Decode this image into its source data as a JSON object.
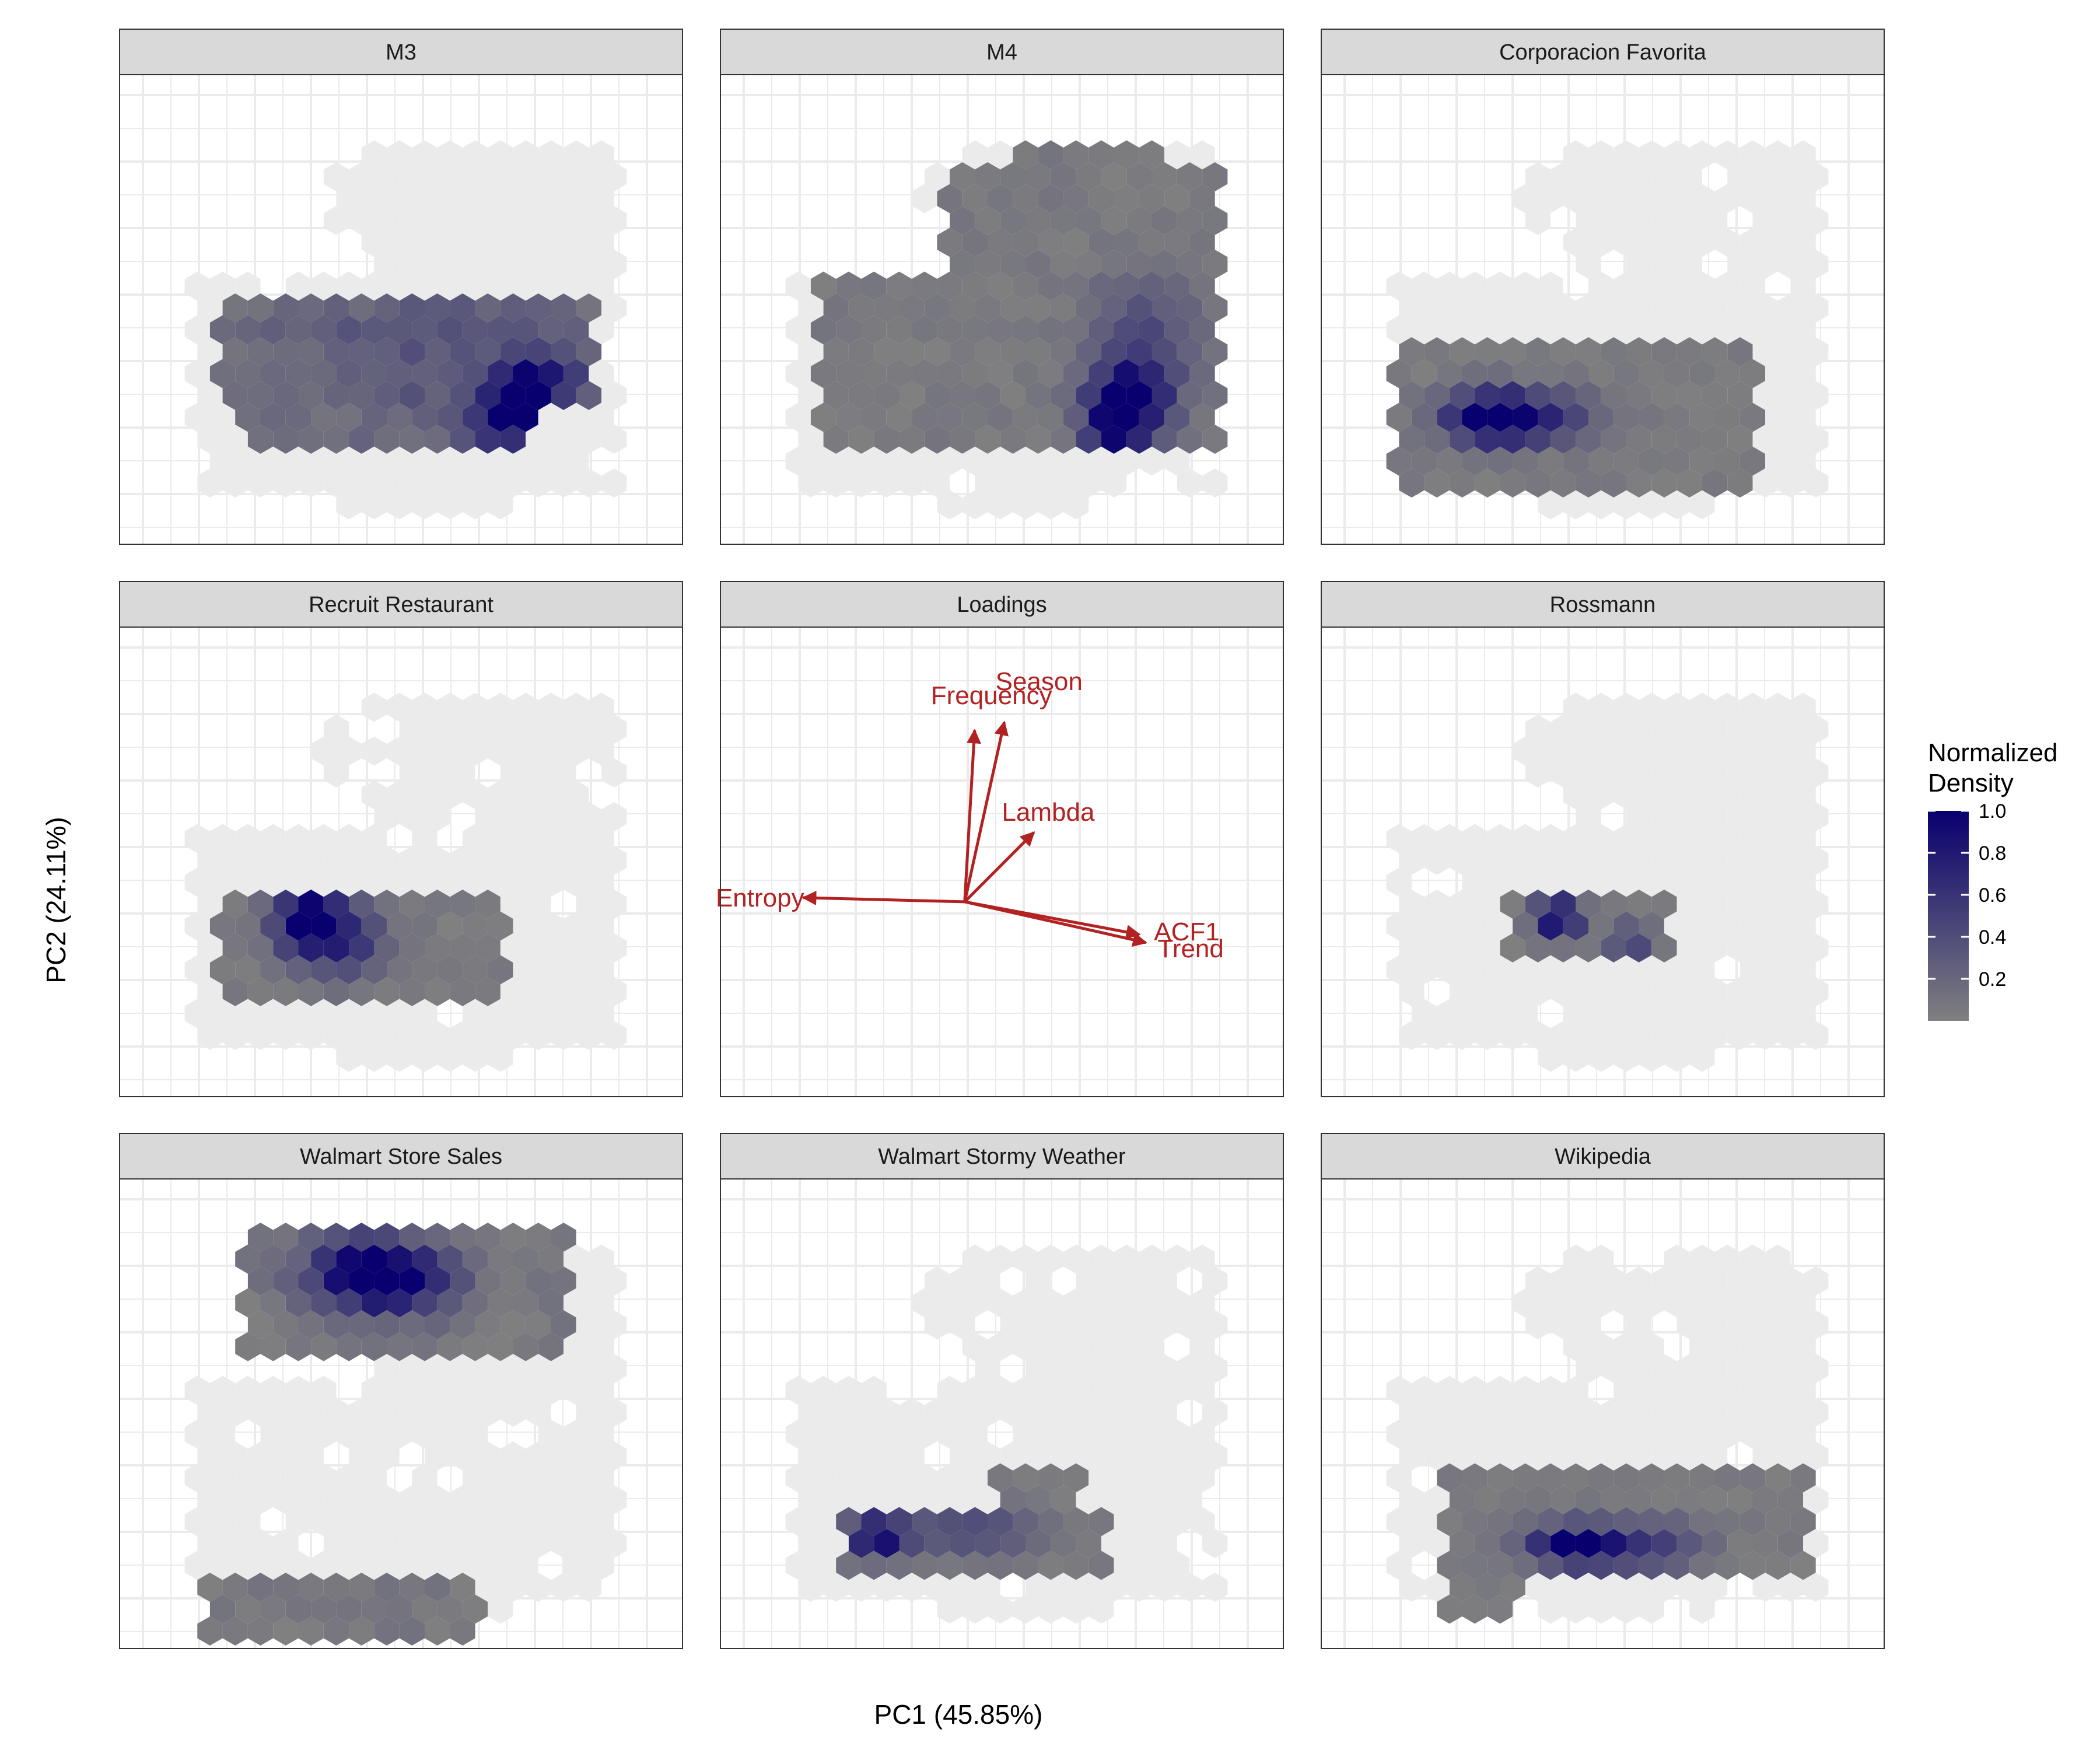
{
  "chart_data": {
    "type": "heatmap",
    "subtype": "faceted hexbin density with PCA loadings",
    "xlabel": "PC1 (45.85%)",
    "ylabel": "PC2 (24.11%)",
    "legend": {
      "title_line1": "Normalized",
      "title_line2": "Density",
      "ticks": [
        "1.0",
        "0.8",
        "0.6",
        "0.4",
        "0.2"
      ],
      "tick_values": [
        1.0,
        0.8,
        0.6,
        0.4,
        0.2
      ],
      "position": "right"
    },
    "colors": {
      "low": "#808080",
      "high": "#08006e",
      "background_hex": "#ebebeb",
      "loadings_arrow": "#b22222",
      "strip_fill": "#d9d9d9",
      "grid": "#ebebeb"
    },
    "grid": true,
    "panels": [
      {
        "name": "M3",
        "kind": "density",
        "hotspots": [
          {
            "cx": 0.7,
            "cy": 0.28,
            "amp": 1.0,
            "sx": 0.05,
            "sy": 0.05
          },
          {
            "cx": 0.76,
            "cy": 0.36,
            "amp": 0.55,
            "sx": 0.05,
            "sy": 0.04
          },
          {
            "cx": 0.55,
            "cy": 0.4,
            "amp": 0.25,
            "sx": 0.2,
            "sy": 0.12
          }
        ],
        "regions": [
          [
            0.18,
            0.3,
            0.84,
            0.53
          ],
          [
            0.22,
            0.18,
            0.74,
            0.3
          ]
        ],
        "noise": 0.18
      },
      {
        "name": "M4",
        "kind": "density",
        "hotspots": [
          {
            "cx": 0.72,
            "cy": 0.3,
            "amp": 1.0,
            "sx": 0.05,
            "sy": 0.05
          },
          {
            "cx": 0.7,
            "cy": 0.18,
            "amp": 0.8,
            "sx": 0.04,
            "sy": 0.06
          },
          {
            "cx": 0.75,
            "cy": 0.42,
            "amp": 0.45,
            "sx": 0.06,
            "sy": 0.1
          }
        ],
        "regions": [
          [
            0.18,
            0.22,
            0.88,
            0.55
          ],
          [
            0.4,
            0.55,
            0.88,
            0.8
          ],
          [
            0.5,
            0.8,
            0.8,
            0.86
          ]
        ],
        "noise": 0.1
      },
      {
        "name": "Corporacion Favorita",
        "kind": "density",
        "hotspots": [
          {
            "cx": 0.3,
            "cy": 0.27,
            "amp": 1.0,
            "sx": 0.06,
            "sy": 0.04
          },
          {
            "cx": 0.4,
            "cy": 0.27,
            "amp": 0.45,
            "sx": 0.07,
            "sy": 0.04
          }
        ],
        "regions": [
          [
            0.12,
            0.12,
            0.78,
            0.45
          ]
        ],
        "noise": 0.08
      },
      {
        "name": "Recruit Restaurant",
        "kind": "density",
        "hotspots": [
          {
            "cx": 0.34,
            "cy": 0.38,
            "amp": 1.0,
            "sx": 0.05,
            "sy": 0.05
          },
          {
            "cx": 0.4,
            "cy": 0.32,
            "amp": 0.45,
            "sx": 0.06,
            "sy": 0.05
          }
        ],
        "regions": [
          [
            0.18,
            0.2,
            0.68,
            0.45
          ]
        ],
        "noise": 0.08
      },
      {
        "name": "Loadings",
        "kind": "loadings",
        "vectors": [
          {
            "label": "Season",
            "x": 0.6,
            "y": 2.2
          },
          {
            "label": "Frequency",
            "x": 0.15,
            "y": 2.1
          },
          {
            "label": "Lambda",
            "x": 1.05,
            "y": 0.85
          },
          {
            "label": "Entropy",
            "x": -2.45,
            "y": 0.05
          },
          {
            "label": "ACF1",
            "x": 2.65,
            "y": -0.4
          },
          {
            "label": "Trend",
            "x": 2.75,
            "y": -0.5
          }
        ]
      },
      {
        "name": "Rossmann",
        "kind": "density",
        "hotspots": [
          {
            "cx": 0.42,
            "cy": 0.38,
            "amp": 1.0,
            "sx": 0.03,
            "sy": 0.03
          },
          {
            "cx": 0.55,
            "cy": 0.33,
            "amp": 0.45,
            "sx": 0.03,
            "sy": 0.03
          }
        ],
        "regions": [
          [
            0.32,
            0.3,
            0.62,
            0.42
          ]
        ],
        "noise": 0.06
      },
      {
        "name": "Walmart Store Sales",
        "kind": "density",
        "hotspots": [
          {
            "cx": 0.43,
            "cy": 0.8,
            "amp": 1.0,
            "sx": 0.07,
            "sy": 0.05
          },
          {
            "cx": 0.52,
            "cy": 0.78,
            "amp": 0.55,
            "sx": 0.07,
            "sy": 0.05
          }
        ],
        "regions": [
          [
            0.22,
            0.64,
            0.8,
            0.88
          ],
          [
            0.15,
            0.03,
            0.65,
            0.14
          ]
        ],
        "noise": 0.12
      },
      {
        "name": "Walmart Stormy Weather",
        "kind": "density",
        "hotspots": [
          {
            "cx": 0.28,
            "cy": 0.24,
            "amp": 1.0,
            "sx": 0.04,
            "sy": 0.03
          },
          {
            "cx": 0.45,
            "cy": 0.25,
            "amp": 0.4,
            "sx": 0.08,
            "sy": 0.04
          }
        ],
        "regions": [
          [
            0.22,
            0.17,
            0.68,
            0.3
          ],
          [
            0.48,
            0.3,
            0.65,
            0.38
          ]
        ],
        "noise": 0.07
      },
      {
        "name": "Wikipedia",
        "kind": "density",
        "hotspots": [
          {
            "cx": 0.45,
            "cy": 0.22,
            "amp": 1.0,
            "sx": 0.06,
            "sy": 0.03
          },
          {
            "cx": 0.58,
            "cy": 0.22,
            "amp": 0.45,
            "sx": 0.07,
            "sy": 0.04
          }
        ],
        "regions": [
          [
            0.22,
            0.16,
            0.86,
            0.4
          ],
          [
            0.22,
            0.08,
            0.36,
            0.14
          ]
        ],
        "noise": 0.08
      }
    ]
  }
}
